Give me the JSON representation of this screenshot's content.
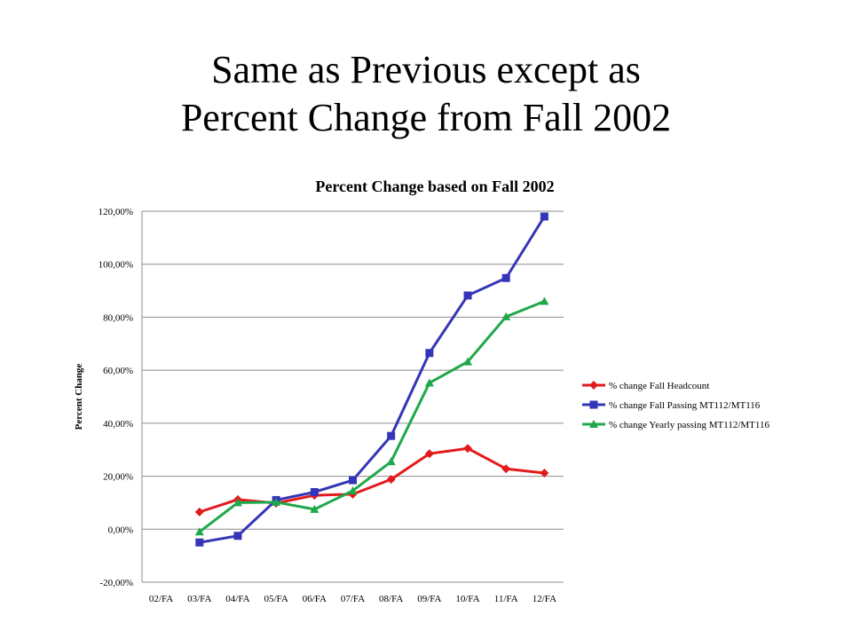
{
  "slide": {
    "title_line1": "Same as Previous except as",
    "title_line2": "Percent Change from Fall 2002"
  },
  "chart_data": {
    "type": "line",
    "title": "Percent Change based on Fall 2002",
    "ylabel": "Percent Change",
    "xlabel": "",
    "categories": [
      "02/FA",
      "03/FA",
      "04/FA",
      "05/FA",
      "06/FA",
      "07/FA",
      "08/FA",
      "09/FA",
      "10/FA",
      "11/FA",
      "12/FA"
    ],
    "y_ticks": [
      -20,
      0,
      20,
      40,
      60,
      80,
      100,
      120
    ],
    "y_tick_labels": [
      "-20,00%",
      "0,00%",
      "20,00%",
      "40,00%",
      "60,00%",
      "80,00%",
      "100,00%",
      "120,00%"
    ],
    "ylim": [
      -20,
      120
    ],
    "grid": true,
    "legend_position": "right",
    "series": [
      {
        "name": "% change Fall Headcount",
        "color": "#e31a1c",
        "marker": "diamond",
        "values": [
          null,
          6.5,
          11.2,
          9.8,
          12.8,
          13.2,
          18.8,
          28.5,
          30.5,
          22.8,
          21.2
        ]
      },
      {
        "name": "% change Fall Passing MT112/MT116",
        "color": "#3535b8",
        "marker": "square",
        "values": [
          null,
          -5.0,
          -2.5,
          11.0,
          14.0,
          18.5,
          35.2,
          66.5,
          88.2,
          94.8,
          118.0
        ]
      },
      {
        "name": "% change Yearly passing MT112/MT116",
        "color": "#1fa84a",
        "marker": "triangle",
        "values": [
          null,
          -1.0,
          10.0,
          10.2,
          7.5,
          14.5,
          25.5,
          55.2,
          63.2,
          80.2,
          86.0
        ]
      }
    ]
  }
}
